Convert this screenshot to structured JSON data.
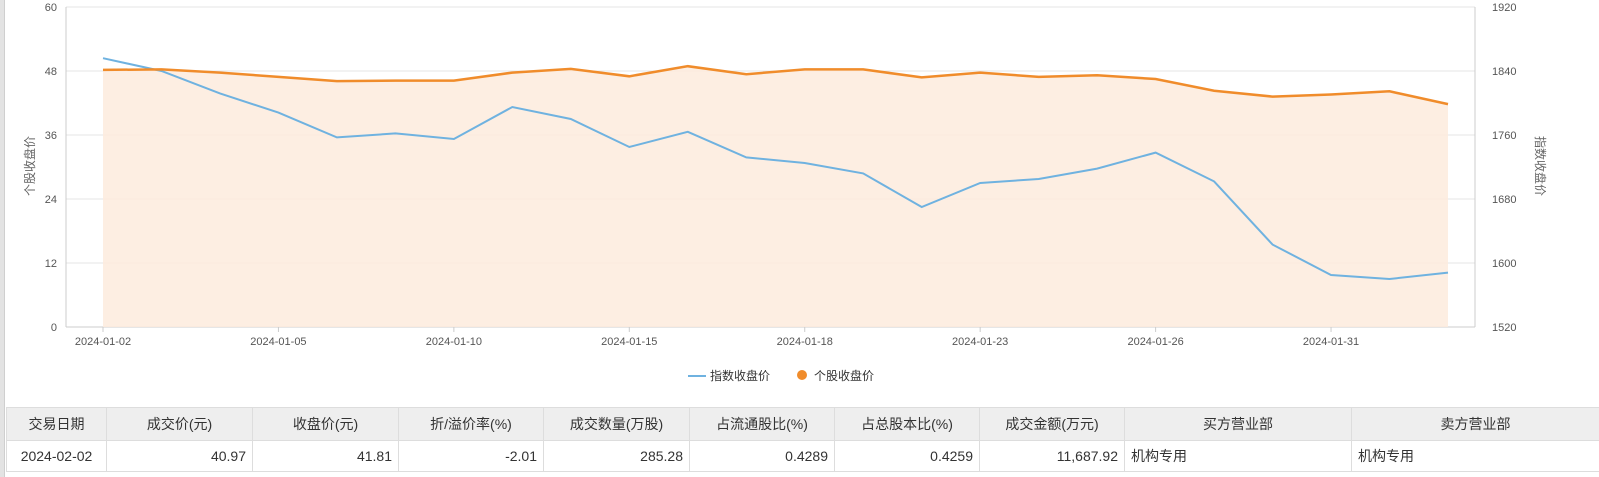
{
  "chart_data": {
    "type": "line",
    "x": [
      "2024-01-02",
      "2024-01-03",
      "2024-01-04",
      "2024-01-05",
      "2024-01-08",
      "2024-01-09",
      "2024-01-10",
      "2024-01-11",
      "2024-01-12",
      "2024-01-15",
      "2024-01-16",
      "2024-01-17",
      "2024-01-18",
      "2024-01-19",
      "2024-01-22",
      "2024-01-23",
      "2024-01-24",
      "2024-01-25",
      "2024-01-26",
      "2024-01-29",
      "2024-01-30",
      "2024-01-31",
      "2024-02-01",
      "2024-02-02"
    ],
    "x_tick_labels": [
      "2024-01-02",
      "2024-01-05",
      "2024-01-10",
      "2024-01-15",
      "2024-01-18",
      "2024-01-23",
      "2024-01-26",
      "2024-01-31"
    ],
    "series": [
      {
        "name": "指数收盘价",
        "axis": "right",
        "color": "#6fb2e0",
        "values": [
          1856,
          1840,
          1812,
          1788,
          1757,
          1762,
          1755,
          1795,
          1780,
          1745,
          1764,
          1732,
          1725,
          1712,
          1670,
          1700,
          1705,
          1718,
          1738,
          1702,
          1623,
          1585,
          1580,
          1588
        ]
      },
      {
        "name": "个股收盘价",
        "axis": "left",
        "color": "#f08c2b",
        "area_fill": "#fdebdd",
        "values": [
          48.2,
          48.3,
          47.7,
          46.9,
          46.1,
          46.2,
          46.2,
          47.7,
          48.4,
          47.0,
          48.9,
          47.4,
          48.3,
          48.3,
          46.8,
          47.7,
          46.9,
          47.2,
          46.5,
          44.3,
          43.2,
          43.6,
          44.2,
          41.8
        ]
      }
    ],
    "ylabel_left": "个股收盘价",
    "ylim_left": [
      0,
      60
    ],
    "yticks_left": [
      "0",
      "12",
      "24",
      "36",
      "48",
      "60"
    ],
    "ylabel_right": "指数收盘价",
    "ylim_right": [
      1520,
      1920
    ],
    "yticks_right": [
      "1520",
      "1600",
      "1680",
      "1760",
      "1840",
      "1920"
    ],
    "grid": "horizontal",
    "legend_placement": "bottom-center"
  },
  "table": {
    "headers": [
      "交易日期",
      "成交价(元)",
      "收盘价(元)",
      "折/溢价率(%)",
      "成交数量(万股)",
      "占流通股比(%)",
      "占总股本比(%)",
      "成交金额(万元)",
      "买方营业部",
      "卖方营业部"
    ],
    "rows": [
      [
        "2024-02-02",
        "40.97",
        "41.81",
        "-2.01",
        "285.28",
        "0.4289",
        "0.4259",
        "11,687.92",
        "机构专用",
        "机构专用"
      ]
    ]
  }
}
